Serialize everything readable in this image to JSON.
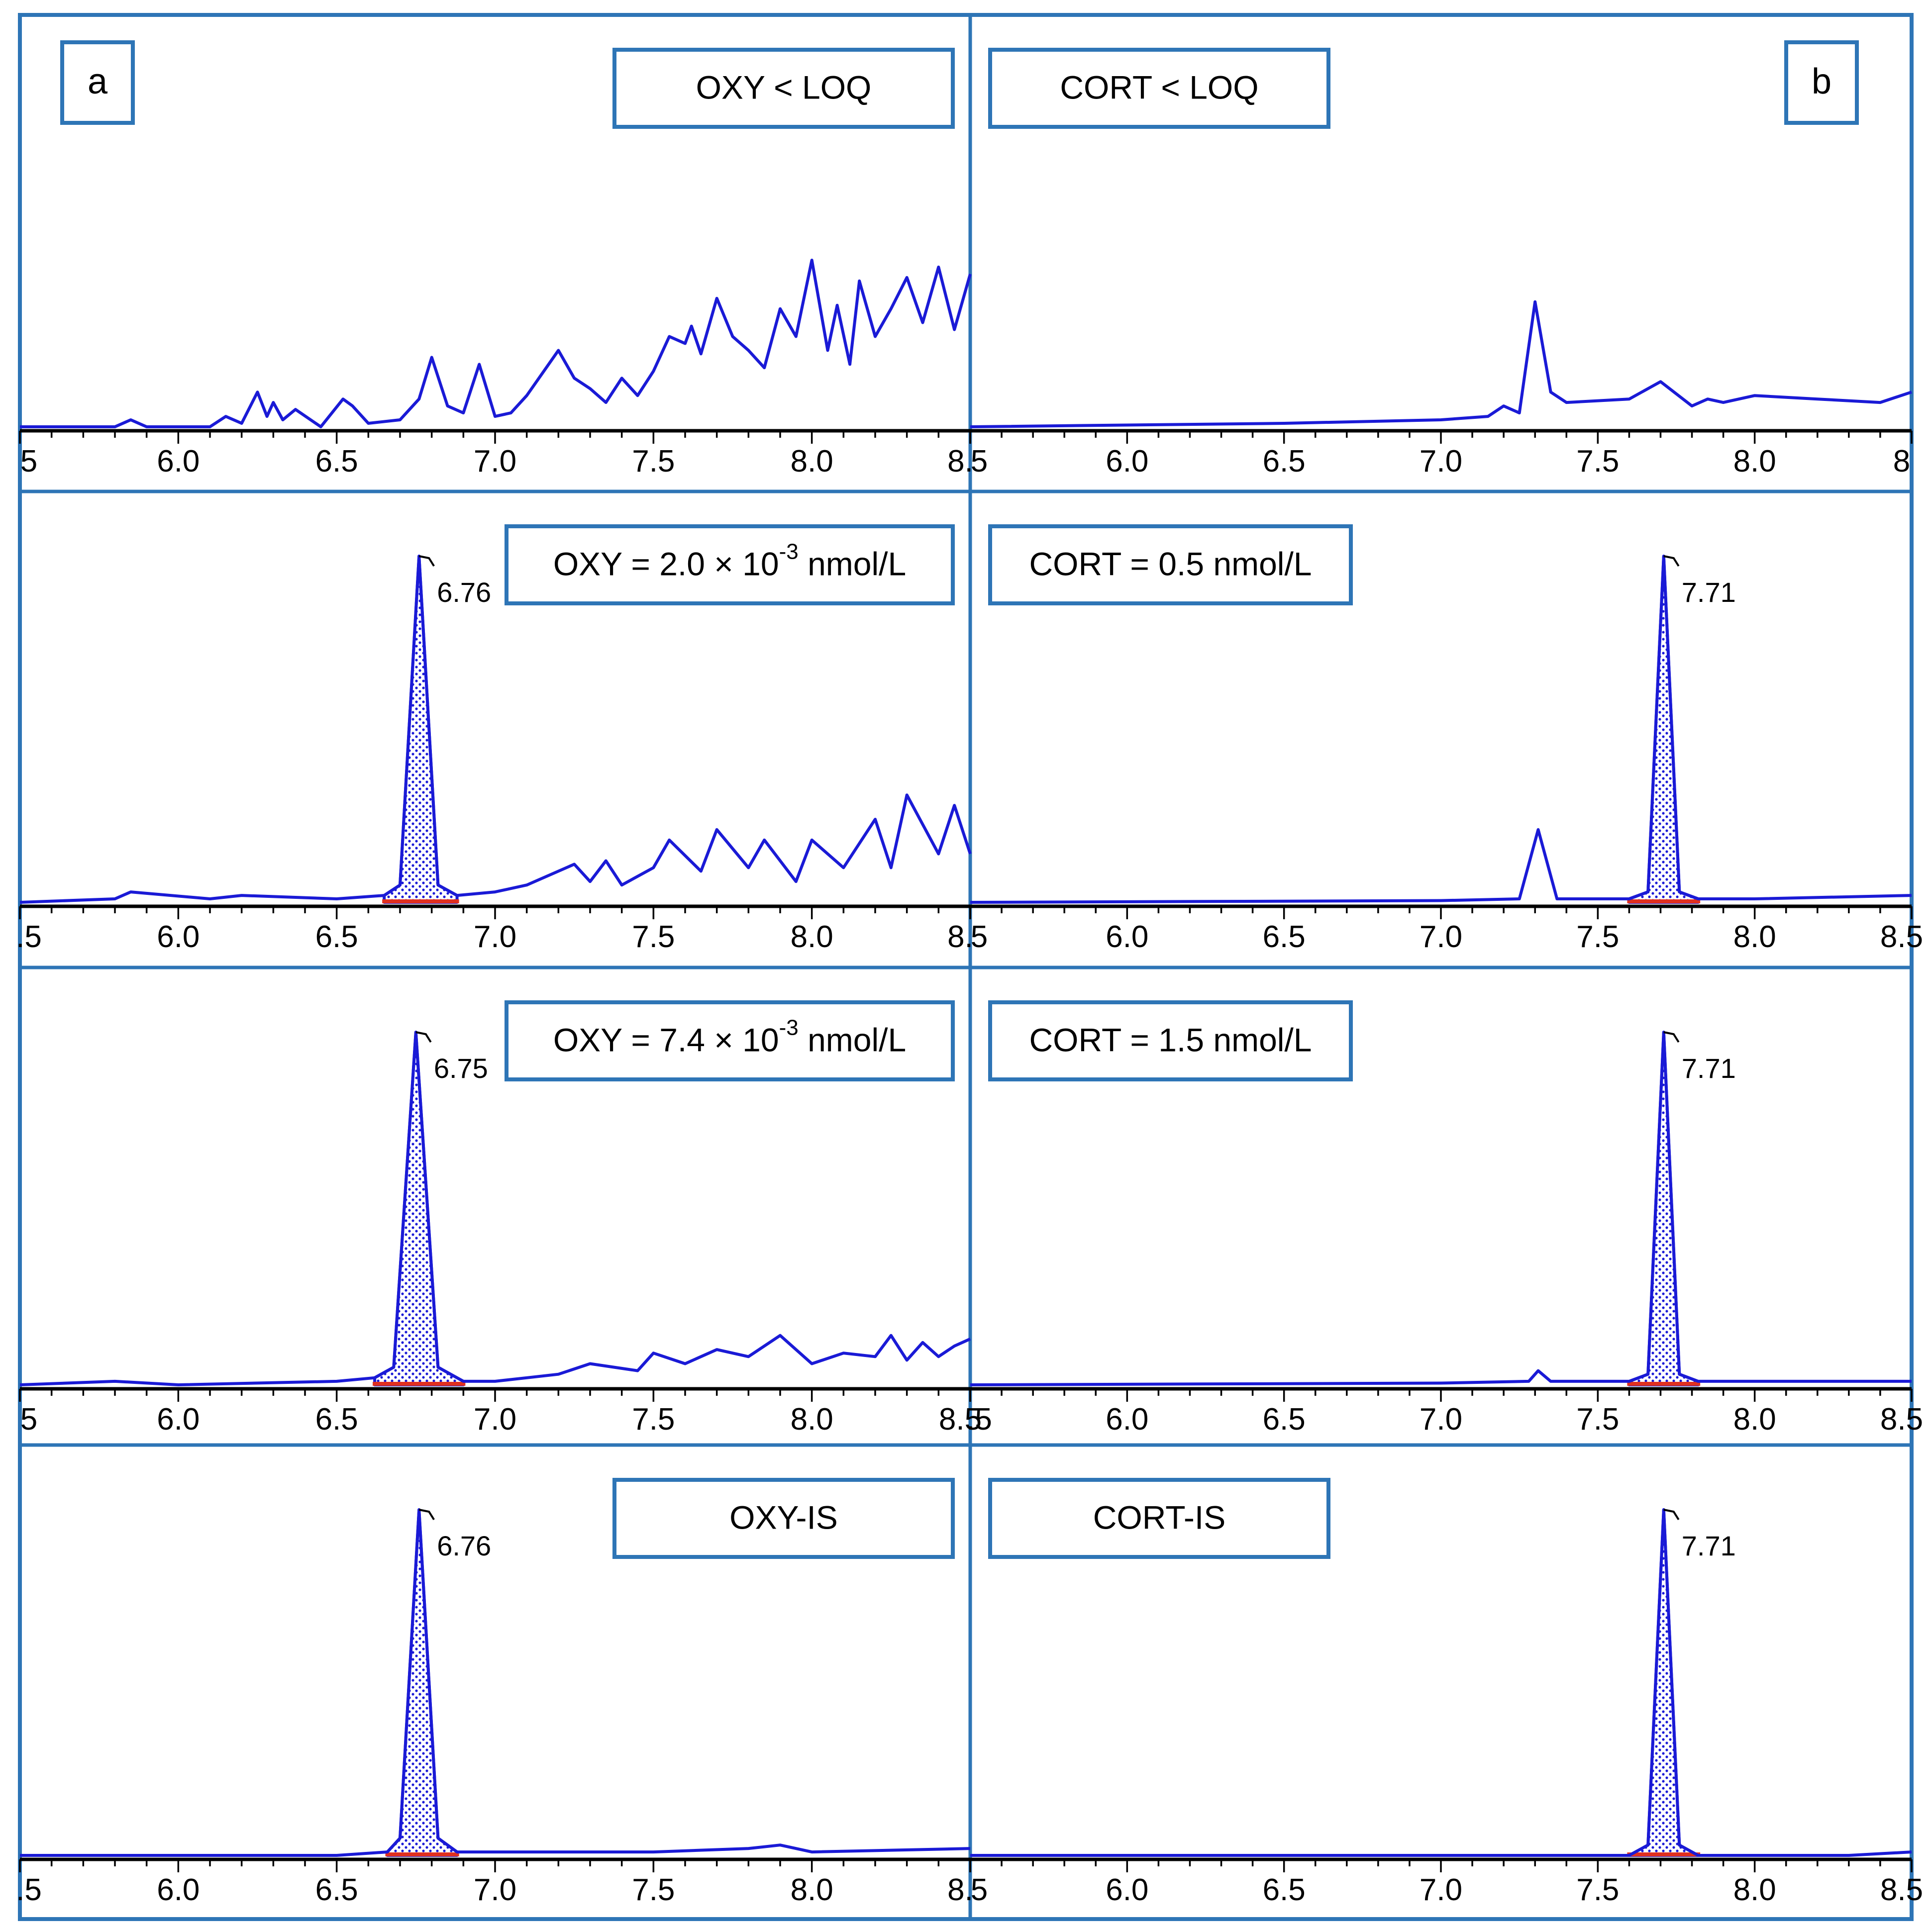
{
  "figure": {
    "panel_labels": [
      "a",
      "b"
    ]
  },
  "chart_data": [
    {
      "type": "line",
      "column": "a",
      "row": 0,
      "annotation": "OXY < LOQ",
      "panel_letter": "a",
      "xlim": [
        5.5,
        8.5
      ],
      "ylim": [
        0,
        100
      ],
      "x_ticks": [
        "5",
        "6.0",
        "6.5",
        "7.0",
        "7.5",
        "8.0",
        "8."
      ],
      "series": [
        {
          "x": [
            5.5,
            5.8,
            5.85,
            5.9,
            6.1,
            6.15,
            6.2,
            6.25,
            6.28,
            6.3,
            6.33,
            6.37,
            6.45,
            6.52,
            6.55,
            6.6,
            6.7,
            6.76,
            6.8,
            6.85,
            6.9,
            6.95,
            7.0,
            7.05,
            7.1,
            7.2,
            7.25,
            7.3,
            7.35,
            7.4,
            7.45,
            7.5,
            7.55,
            7.6,
            7.62,
            7.65,
            7.7,
            7.75,
            7.8,
            7.85,
            7.9,
            7.95,
            8.0,
            8.05,
            8.08,
            8.12,
            8.15,
            8.2,
            8.25,
            8.3,
            8.35,
            8.4,
            8.45,
            8.5
          ],
          "y": [
            0,
            0,
            2,
            0,
            0,
            3,
            1,
            10,
            3,
            7,
            2,
            5,
            0,
            8,
            6,
            1,
            2,
            8,
            20,
            6,
            4,
            18,
            3,
            4,
            9,
            22,
            14,
            11,
            7,
            14,
            9,
            16,
            26,
            24,
            29,
            21,
            37,
            26,
            22,
            17,
            34,
            26,
            48,
            22,
            35,
            18,
            42,
            26,
            34,
            43,
            30,
            46,
            28,
            44
          ]
        }
      ]
    },
    {
      "type": "line",
      "column": "b",
      "row": 0,
      "annotation": "CORT < LOQ",
      "panel_letter": "b",
      "xlim": [
        5.5,
        8.5
      ],
      "ylim": [
        0,
        100
      ],
      "x_ticks": [
        "5",
        "6.0",
        "6.5",
        "7.0",
        "7.5",
        "8.0",
        "8"
      ],
      "series": [
        {
          "x": [
            5.5,
            6.5,
            7.0,
            7.15,
            7.2,
            7.25,
            7.3,
            7.35,
            7.4,
            7.6,
            7.7,
            7.8,
            7.85,
            7.9,
            8.0,
            8.2,
            8.4,
            8.5
          ],
          "y": [
            0,
            1,
            2,
            3,
            6,
            4,
            36,
            10,
            7,
            8,
            13,
            6,
            8,
            7,
            9,
            8,
            7,
            10
          ]
        }
      ]
    },
    {
      "type": "line",
      "column": "a",
      "row": 1,
      "annotation": "OXY = 2.0 × 10",
      "annotation_exp": "-3",
      "annotation_unit": " nmol/L",
      "peak_rt": "6.76",
      "peak_x": 6.76,
      "xlim": [
        5.5,
        8.5
      ],
      "ylim": [
        0,
        100
      ],
      "x_ticks": [
        ".5",
        "6.0",
        "6.5",
        "7.0",
        "7.5",
        "8.0",
        "8."
      ],
      "series": [
        {
          "x": [
            5.5,
            5.8,
            5.85,
            6.1,
            6.2,
            6.5,
            6.65,
            6.7,
            6.76,
            6.82,
            6.88,
            7.0,
            7.1,
            7.25,
            7.3,
            7.35,
            7.4,
            7.5,
            7.55,
            7.65,
            7.7,
            7.8,
            7.85,
            7.95,
            8.0,
            8.1,
            8.2,
            8.25,
            8.3,
            8.4,
            8.45,
            8.5
          ],
          "y": [
            0,
            1,
            3,
            1,
            2,
            1,
            2,
            5,
            100,
            5,
            2,
            3,
            5,
            11,
            6,
            12,
            5,
            10,
            18,
            9,
            21,
            10,
            18,
            6,
            18,
            10,
            24,
            10,
            31,
            14,
            28,
            14
          ]
        }
      ]
    },
    {
      "type": "line",
      "column": "b",
      "row": 1,
      "annotation": "CORT = 0.5 nmol/L",
      "peak_rt": "7.71",
      "peak_x": 7.71,
      "xlim": [
        5.5,
        8.5
      ],
      "ylim": [
        0,
        100
      ],
      "x_ticks": [
        "5",
        "6.0",
        "6.5",
        "7.0",
        "7.5",
        "8.0",
        "8.5"
      ],
      "series": [
        {
          "x": [
            5.5,
            7.0,
            7.25,
            7.31,
            7.37,
            7.6,
            7.66,
            7.71,
            7.76,
            7.82,
            8.0,
            8.5
          ],
          "y": [
            0,
            0.5,
            1,
            21,
            1,
            1,
            3,
            100,
            3,
            1,
            1,
            2
          ]
        }
      ]
    },
    {
      "type": "line",
      "column": "a",
      "row": 2,
      "annotation": "OXY = 7.4 × 10",
      "annotation_exp": "-3",
      "annotation_unit": " nmol/L",
      "peak_rt": "6.75",
      "peak_x": 6.75,
      "xlim": [
        5.5,
        8.5
      ],
      "ylim": [
        0,
        100
      ],
      "x_ticks": [
        "5",
        "6.0",
        "6.5",
        "7.0",
        "7.5",
        "8.0",
        "8.5"
      ],
      "series": [
        {
          "x": [
            5.5,
            5.8,
            6.0,
            6.5,
            6.62,
            6.68,
            6.75,
            6.82,
            6.9,
            7.0,
            7.1,
            7.2,
            7.3,
            7.45,
            7.5,
            7.6,
            7.7,
            7.8,
            7.9,
            8.0,
            8.1,
            8.2,
            8.25,
            8.3,
            8.35,
            8.4,
            8.45,
            8.5
          ],
          "y": [
            0,
            1,
            0,
            1,
            2,
            5,
            100,
            5,
            1,
            1,
            2,
            3,
            6,
            4,
            9,
            6,
            10,
            8,
            14,
            6,
            9,
            8,
            14,
            7,
            12,
            8,
            11,
            13
          ]
        }
      ]
    },
    {
      "type": "line",
      "column": "b",
      "row": 2,
      "annotation": "CORT = 1.5 nmol/L",
      "peak_rt": "7.71",
      "peak_x": 7.71,
      "xlim": [
        5.5,
        8.5
      ],
      "ylim": [
        0,
        100
      ],
      "x_ticks": [
        ".5",
        "6.0",
        "6.5",
        "7.0",
        "7.5",
        "8.0",
        "8.5"
      ],
      "series": [
        {
          "x": [
            5.5,
            7.0,
            7.28,
            7.31,
            7.35,
            7.6,
            7.66,
            7.71,
            7.76,
            7.82,
            8.0,
            8.5
          ],
          "y": [
            0,
            0.5,
            1,
            4,
            1,
            1,
            3,
            100,
            3,
            1,
            1,
            1
          ]
        }
      ]
    },
    {
      "type": "line",
      "column": "a",
      "row": 3,
      "annotation": "OXY-IS",
      "peak_rt": "6.76",
      "peak_x": 6.76,
      "xlim": [
        5.5,
        8.5
      ],
      "ylim": [
        0,
        100
      ],
      "x_ticks": [
        ".5",
        "6.0",
        "6.5",
        "7.0",
        "7.5",
        "8.0",
        "8."
      ],
      "series": [
        {
          "x": [
            5.5,
            6.0,
            6.5,
            6.66,
            6.7,
            6.76,
            6.82,
            6.88,
            7.0,
            7.5,
            7.8,
            7.9,
            8.0,
            8.5
          ],
          "y": [
            0,
            0,
            0,
            1,
            5,
            100,
            5,
            1,
            1,
            1,
            2,
            3,
            1,
            2
          ]
        }
      ]
    },
    {
      "type": "line",
      "column": "b",
      "row": 3,
      "annotation": "CORT-IS",
      "peak_rt": "7.71",
      "peak_x": 7.71,
      "xlim": [
        5.5,
        8.5
      ],
      "ylim": [
        0,
        100
      ],
      "x_ticks": [
        "5",
        "6.0",
        "6.5",
        "7.0",
        "7.5",
        "8.0",
        "8.5"
      ],
      "series": [
        {
          "x": [
            5.5,
            7.6,
            7.66,
            7.71,
            7.76,
            7.82,
            8.3,
            8.5
          ],
          "y": [
            0,
            0,
            3,
            100,
            3,
            0,
            0,
            1
          ]
        }
      ]
    }
  ]
}
